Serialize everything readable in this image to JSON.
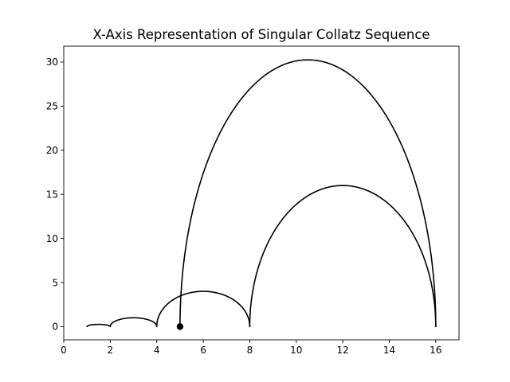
{
  "chart_data": {
    "type": "line",
    "title": "X-Axis Representation of Singular Collatz Sequence",
    "xlabel": "",
    "ylabel": "",
    "xlim": [
      0,
      17
    ],
    "ylim": [
      -1.5,
      31.8
    ],
    "x_ticks": [
      0,
      2,
      4,
      6,
      8,
      10,
      12,
      14,
      16
    ],
    "y_ticks": [
      0,
      5,
      10,
      15,
      20,
      25,
      30
    ],
    "grid": false,
    "legend": "none",
    "line_color": "#000000",
    "sequence": [
      5,
      16,
      8,
      4,
      2,
      1
    ],
    "arcs": [
      {
        "from": 5,
        "to": 16,
        "side": "upper",
        "peak_x": 10.5,
        "peak_y": 30.25
      },
      {
        "from": 16,
        "to": 8,
        "side": "upper",
        "peak_x": 12,
        "peak_y": 16
      },
      {
        "from": 8,
        "to": 4,
        "side": "upper",
        "peak_x": 6,
        "peak_y": 4
      },
      {
        "from": 4,
        "to": 2,
        "side": "upper",
        "peak_x": 3,
        "peak_y": 1
      },
      {
        "from": 2,
        "to": 1,
        "side": "upper",
        "peak_x": 1.5,
        "peak_y": 0.25
      }
    ],
    "start_marker": {
      "x": 5,
      "y": 0
    }
  }
}
